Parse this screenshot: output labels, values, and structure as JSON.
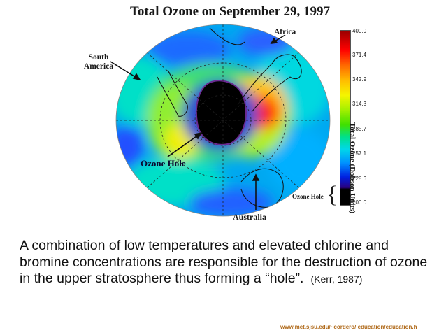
{
  "title": "Total Ozone on September 29, 1997",
  "labels": {
    "south_america": "South America",
    "africa": "Africa",
    "ozone_hole": "Ozone Hole",
    "australia": "Australia",
    "ozone_hole_key": "Ozone Hole"
  },
  "colorbar": {
    "title": "Total Ozone (Dobson Units)",
    "ticks": [
      "400.0",
      "371.4",
      "342.9",
      "314.3",
      "285.7",
      "257.1",
      "228.6",
      "200.0"
    ],
    "colors": [
      "#9a0000",
      "#ff0000",
      "#ff6a00",
      "#ffc000",
      "#f5f500",
      "#a8f000",
      "#40e000",
      "#00e08a",
      "#00d8e8",
      "#0090ff",
      "#0020e0",
      "#2a0080",
      "#000000"
    ]
  },
  "caption": {
    "text": "A combination of low temperatures and elevated chlorine and bromine concentrations are responsible for the destruction of ozone in the upper stratosphere thus forming a “hole”.",
    "citation": "(Kerr, 1987)"
  },
  "source_url": "www.met.sjsu.edu/~cordero/ education/education.h"
}
